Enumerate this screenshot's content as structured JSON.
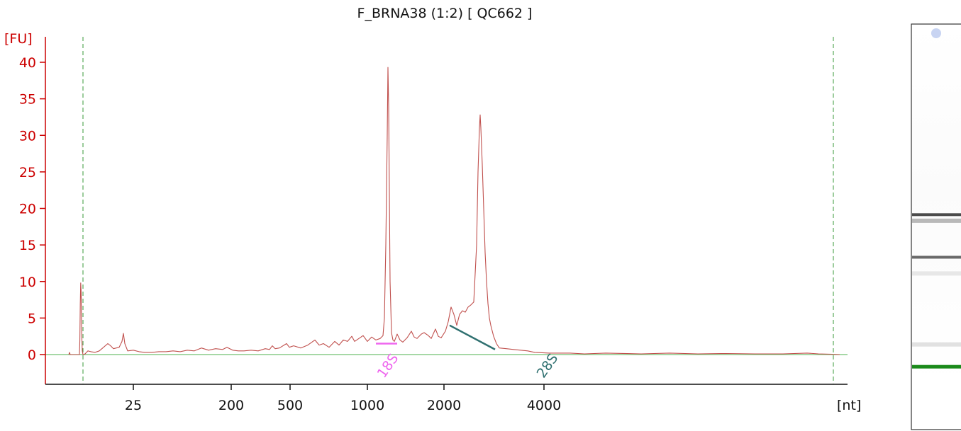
{
  "title": "F_BRNA38 (1:2)  [ QC662 ]",
  "chart_data": {
    "type": "line",
    "title": "F_BRNA38 (1:2)  [ QC662 ]",
    "ylabel": "[FU]",
    "xlabel": "[nt]",
    "ylim": [
      -4,
      44
    ],
    "y_ticks": [
      0,
      5,
      10,
      15,
      20,
      25,
      30,
      35,
      40
    ],
    "x_tick_labels": [
      "25",
      "200",
      "500",
      "1000",
      "2000",
      "4000"
    ],
    "colors": {
      "trace": "#c0504d",
      "axis_y": "#cc0000",
      "baseline": "#70c070",
      "marker_lines": "#3a9a3a",
      "peak_18s": "#ee66ee",
      "peak_28s": "#2f7070",
      "gel_marker": "#1a8a1a"
    },
    "series": [
      {
        "values": [
          [
            16.5,
            0
          ],
          [
            17,
            0.3
          ],
          [
            17.5,
            0
          ],
          [
            24,
            0
          ],
          [
            24.3,
            2
          ],
          [
            24.6,
            7
          ],
          [
            24.9,
            9.8
          ],
          [
            25.2,
            8.5
          ],
          [
            25.6,
            3
          ],
          [
            26,
            0.5
          ],
          [
            26.5,
            0
          ],
          [
            28,
            0.1
          ],
          [
            30,
            0.5
          ],
          [
            32,
            0.4
          ],
          [
            35,
            0.3
          ],
          [
            38,
            0.5
          ],
          [
            41,
            1.0
          ],
          [
            44,
            1.5
          ],
          [
            46,
            1.2
          ],
          [
            48,
            0.8
          ],
          [
            50,
            0.9
          ],
          [
            52,
            1.0
          ],
          [
            54,
            1.8
          ],
          [
            55,
            2.9
          ],
          [
            56,
            1.5
          ],
          [
            58,
            0.5
          ],
          [
            62,
            0.6
          ],
          [
            66,
            0.4
          ],
          [
            70,
            0.3
          ],
          [
            75,
            0.3
          ],
          [
            80,
            0.4
          ],
          [
            85,
            0.4
          ],
          [
            90,
            0.5
          ],
          [
            95,
            0.4
          ],
          [
            100,
            0.6
          ],
          [
            105,
            0.5
          ],
          [
            110,
            0.9
          ],
          [
            115,
            0.6
          ],
          [
            120,
            0.8
          ],
          [
            125,
            0.7
          ],
          [
            128,
            1.0
          ],
          [
            132,
            0.6
          ],
          [
            136,
            0.5
          ],
          [
            140,
            0.5
          ],
          [
            145,
            0.6
          ],
          [
            150,
            0.5
          ],
          [
            155,
            0.8
          ],
          [
            158,
            0.7
          ],
          [
            160,
            1.2
          ],
          [
            162,
            0.8
          ],
          [
            165,
            0.9
          ],
          [
            170,
            1.5
          ],
          [
            172,
            1.0
          ],
          [
            175,
            1.2
          ],
          [
            180,
            0.9
          ],
          [
            185,
            1.3
          ],
          [
            190,
            2.0
          ],
          [
            193,
            1.3
          ],
          [
            196,
            1.5
          ],
          [
            200,
            1.0
          ],
          [
            204,
            1.8
          ],
          [
            207,
            1.3
          ],
          [
            210,
            2.0
          ],
          [
            213,
            1.8
          ],
          [
            216,
            2.5
          ],
          [
            218,
            1.8
          ],
          [
            221,
            2.2
          ],
          [
            224,
            2.6
          ],
          [
            227,
            1.8
          ],
          [
            230,
            2.4
          ],
          [
            233,
            2.0
          ],
          [
            236,
            2.2
          ],
          [
            238,
            2.6
          ],
          [
            239,
            5
          ],
          [
            240,
            15
          ],
          [
            241,
            30
          ],
          [
            241.5,
            39.3
          ],
          [
            242,
            34
          ],
          [
            242.5,
            22
          ],
          [
            243,
            10
          ],
          [
            244,
            3
          ],
          [
            245,
            2
          ],
          [
            246,
            1.8
          ],
          [
            248,
            2.8
          ],
          [
            250,
            2.0
          ],
          [
            252,
            1.7
          ],
          [
            255,
            2.3
          ],
          [
            258,
            3.2
          ],
          [
            260,
            2.4
          ],
          [
            262,
            2.2
          ],
          [
            265,
            2.8
          ],
          [
            267,
            3.0
          ],
          [
            270,
            2.6
          ],
          [
            272,
            2.2
          ],
          [
            275,
            3.5
          ],
          [
            277,
            2.5
          ],
          [
            279,
            2.3
          ],
          [
            282,
            3.2
          ],
          [
            284,
            4.5
          ],
          [
            286,
            6.5
          ],
          [
            288,
            5.5
          ],
          [
            290,
            4.0
          ],
          [
            292,
            5.5
          ],
          [
            294,
            6.0
          ],
          [
            296,
            5.8
          ],
          [
            298,
            6.5
          ],
          [
            300,
            6.8
          ],
          [
            302,
            7.2
          ],
          [
            304,
            15
          ],
          [
            305,
            25
          ],
          [
            306,
            31
          ],
          [
            306.5,
            32.8
          ],
          [
            307,
            31
          ],
          [
            308,
            26
          ],
          [
            309,
            20
          ],
          [
            310,
            14
          ],
          [
            311,
            10
          ],
          [
            312,
            7
          ],
          [
            313,
            5
          ],
          [
            314,
            4
          ],
          [
            316,
            2.5
          ],
          [
            318,
            1.5
          ],
          [
            320,
            0.9
          ],
          [
            325,
            0.8
          ],
          [
            330,
            0.7
          ],
          [
            335,
            0.6
          ],
          [
            340,
            0.5
          ],
          [
            345,
            0.3
          ],
          [
            355,
            0.2
          ],
          [
            370,
            0.2
          ],
          [
            380,
            0.1
          ],
          [
            395,
            0.2
          ],
          [
            420,
            0.1
          ],
          [
            440,
            0.2
          ],
          [
            460,
            0.1
          ],
          [
            480,
            0.15
          ],
          [
            500,
            0.1
          ],
          [
            520,
            0.1
          ],
          [
            537,
            0.2
          ],
          [
            545,
            0.1
          ],
          [
            555,
            0.05
          ],
          [
            560,
            0
          ]
        ]
      }
    ],
    "annotations": [
      {
        "label": "18S",
        "x_range": [
          233,
          248
        ],
        "y": 1.5
      },
      {
        "label": "28S",
        "from": [
          285,
          4.0
        ],
        "to": [
          317,
          0.7
        ]
      }
    ]
  },
  "gel": {
    "bands": [
      {
        "pos": 0.47,
        "intensity": 0.9
      },
      {
        "pos": 0.485,
        "intensity": 0.35
      },
      {
        "pos": 0.575,
        "intensity": 0.75
      },
      {
        "pos": 0.615,
        "intensity": 0.12
      },
      {
        "pos": 0.79,
        "intensity": 0.15
      },
      {
        "pos": 0.845,
        "marker": true
      }
    ]
  }
}
